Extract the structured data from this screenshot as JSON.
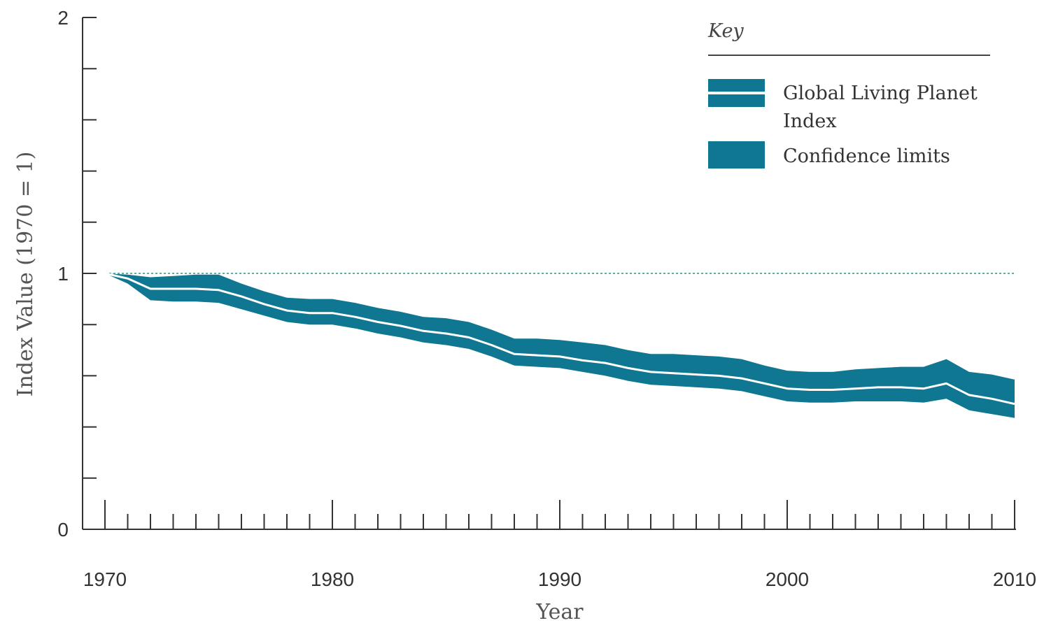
{
  "chart_data": {
    "type": "area",
    "xlabel": "Year",
    "ylabel": "Index Value (1970 = 1)",
    "xlim": [
      1970,
      2010
    ],
    "ylim": [
      0,
      2
    ],
    "x_ticks": [
      "1970",
      "1980",
      "1990",
      "2000",
      "2010"
    ],
    "y_ticks": [
      "0",
      "1",
      "2"
    ],
    "reference_line": 1,
    "legend": {
      "title": "Key",
      "position": "top-right",
      "items": [
        {
          "key": "index",
          "label_lines": [
            "Global Living Planet",
            "Index"
          ]
        },
        {
          "key": "confidence",
          "label_lines": [
            "Confidence limits"
          ]
        }
      ]
    },
    "colors": {
      "band": "#0f7791",
      "line": "#ffffff",
      "reference": "#6aa8a0",
      "axis": "#333333"
    },
    "series": [
      {
        "name": "Global Living Planet Index",
        "x": [
          1970,
          1971,
          1972,
          1973,
          1974,
          1975,
          1976,
          1977,
          1978,
          1979,
          1980,
          1981,
          1982,
          1983,
          1984,
          1985,
          1986,
          1987,
          1988,
          1989,
          1990,
          1991,
          1992,
          1993,
          1994,
          1995,
          1996,
          1997,
          1998,
          1999,
          2000,
          2001,
          2002,
          2003,
          2004,
          2005,
          2006,
          2007,
          2008,
          2009,
          2010
        ],
        "values": [
          1.0,
          0.98,
          0.94,
          0.94,
          0.94,
          0.935,
          0.91,
          0.88,
          0.855,
          0.845,
          0.845,
          0.83,
          0.81,
          0.795,
          0.775,
          0.765,
          0.75,
          0.72,
          0.685,
          0.68,
          0.675,
          0.66,
          0.65,
          0.63,
          0.615,
          0.61,
          0.605,
          0.6,
          0.59,
          0.57,
          0.55,
          0.545,
          0.545,
          0.55,
          0.555,
          0.555,
          0.55,
          0.57,
          0.525,
          0.51,
          0.49
        ],
        "lower": [
          1.0,
          0.96,
          0.895,
          0.89,
          0.89,
          0.885,
          0.86,
          0.835,
          0.81,
          0.8,
          0.8,
          0.785,
          0.765,
          0.75,
          0.73,
          0.72,
          0.705,
          0.675,
          0.64,
          0.635,
          0.63,
          0.615,
          0.6,
          0.58,
          0.565,
          0.56,
          0.555,
          0.55,
          0.54,
          0.52,
          0.5,
          0.495,
          0.495,
          0.5,
          0.5,
          0.5,
          0.495,
          0.51,
          0.465,
          0.45,
          0.435
        ],
        "upper": [
          1.0,
          0.995,
          0.985,
          0.99,
          0.995,
          0.995,
          0.96,
          0.93,
          0.905,
          0.9,
          0.9,
          0.885,
          0.865,
          0.85,
          0.83,
          0.825,
          0.81,
          0.78,
          0.745,
          0.745,
          0.74,
          0.73,
          0.72,
          0.7,
          0.685,
          0.685,
          0.68,
          0.675,
          0.665,
          0.64,
          0.62,
          0.615,
          0.615,
          0.625,
          0.63,
          0.635,
          0.635,
          0.665,
          0.615,
          0.605,
          0.585
        ]
      }
    ]
  }
}
